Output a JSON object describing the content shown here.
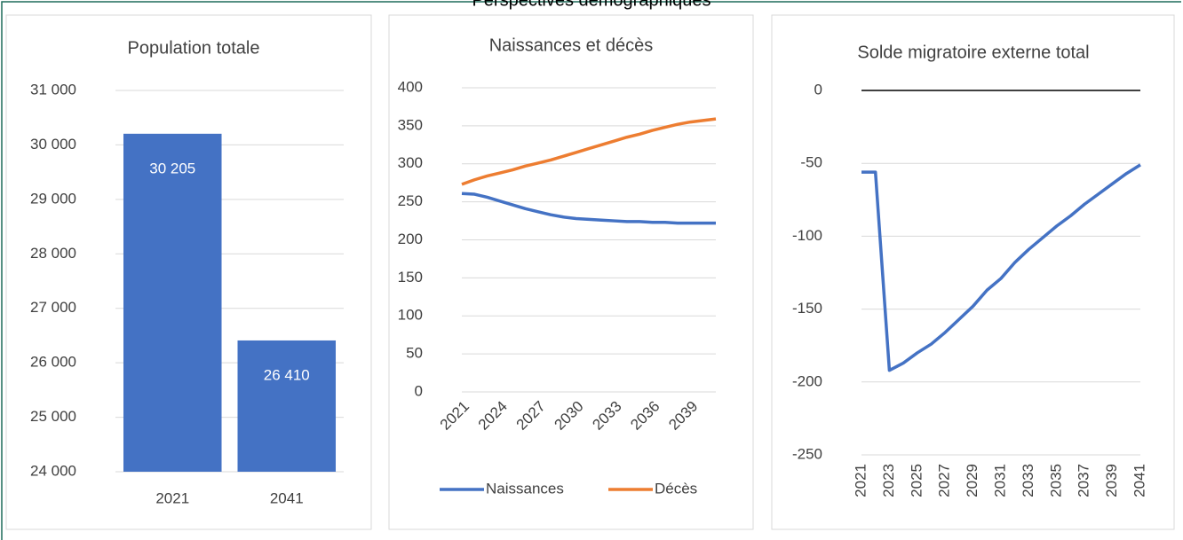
{
  "title": "Perspectives démographiques",
  "chart_data": [
    {
      "type": "bar",
      "title": "Population totale",
      "categories": [
        "2021",
        "2041"
      ],
      "values": [
        30205,
        26410
      ],
      "value_labels": [
        "30 205",
        "26 410"
      ],
      "color": "#4472c4",
      "ylim": [
        24000,
        31000
      ],
      "yticks": [
        {
          "value": 24000,
          "label": "24 000"
        },
        {
          "value": 25000,
          "label": "25 000"
        },
        {
          "value": 26000,
          "label": "26 000"
        },
        {
          "value": 27000,
          "label": "27 000"
        },
        {
          "value": 28000,
          "label": "28 000"
        },
        {
          "value": 29000,
          "label": "29 000"
        },
        {
          "value": 30000,
          "label": "30 000"
        },
        {
          "value": 31000,
          "label": "31 000"
        }
      ],
      "grid": true
    },
    {
      "type": "line",
      "title": "Naissances et décès",
      "categories": [
        "2021",
        null,
        null,
        "2024",
        null,
        null,
        "2027",
        null,
        null,
        "2030",
        null,
        null,
        "2033",
        null,
        null,
        "2036",
        null,
        null,
        "2039",
        null,
        null
      ],
      "series": [
        {
          "name": "Naissances",
          "color": "#4472c4",
          "values": [
            261,
            260,
            256,
            251,
            246,
            241,
            237,
            233,
            230,
            228,
            227,
            226,
            225,
            224,
            224,
            223,
            223,
            222,
            222,
            222,
            222
          ]
        },
        {
          "name": "Décès",
          "color": "#ed7d31",
          "values": [
            273,
            279,
            284,
            288,
            292,
            297,
            301,
            305,
            310,
            315,
            320,
            325,
            330,
            335,
            339,
            344,
            348,
            352,
            355,
            357,
            359
          ]
        }
      ],
      "ylim": [
        0,
        400
      ],
      "yticks": [
        0,
        50,
        100,
        150,
        200,
        250,
        300,
        350,
        400
      ],
      "grid": true,
      "legend": "bottom"
    },
    {
      "type": "line",
      "title": "Solde migratoire externe total",
      "categories": [
        "2021",
        null,
        "2023",
        null,
        "2025",
        null,
        "2027",
        null,
        "2029",
        null,
        "2031",
        null,
        "2033",
        null,
        "2035",
        null,
        "2037",
        null,
        "2039",
        null,
        "2041"
      ],
      "series": [
        {
          "name": "Solde migratoire externe total",
          "color": "#4472c4",
          "values": [
            -56,
            -56,
            -192,
            -187,
            -180,
            -174,
            -166,
            -157,
            -148,
            -137,
            -129,
            -118,
            -109,
            -101,
            -93,
            -86,
            -78,
            -71,
            -64,
            -57,
            -51
          ]
        }
      ],
      "ylim": [
        -250,
        0
      ],
      "yticks": [
        -250,
        -200,
        -150,
        -100,
        -50,
        0
      ],
      "grid": true
    }
  ]
}
